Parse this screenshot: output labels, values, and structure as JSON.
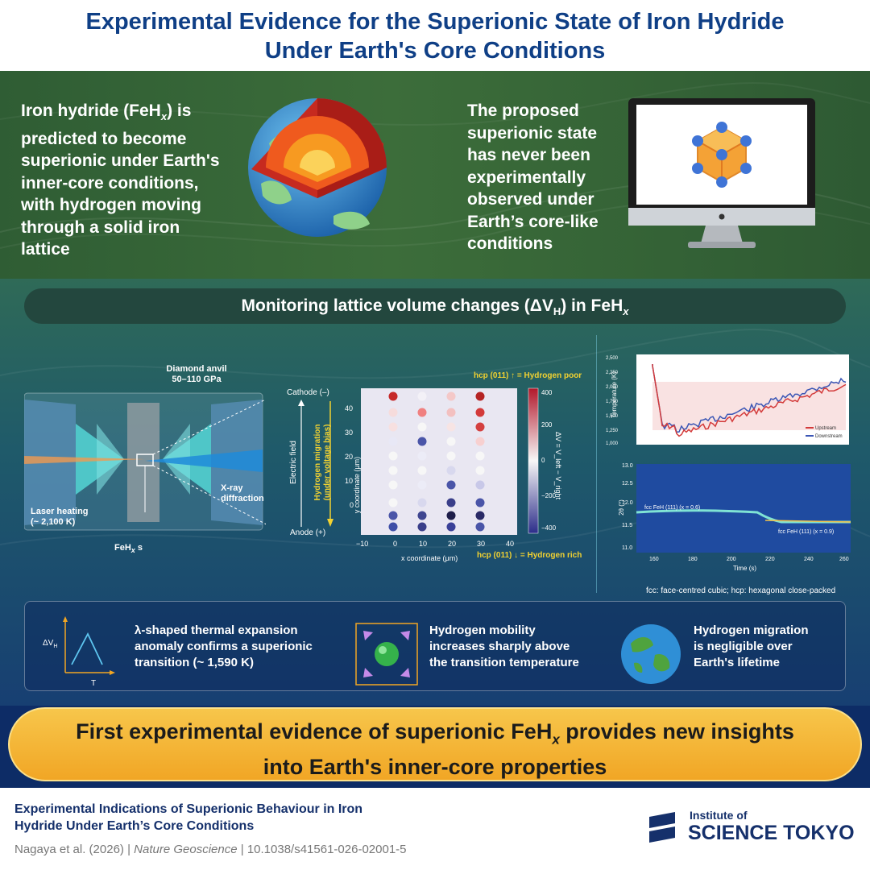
{
  "header": {
    "title_line1": "Experimental Evidence for the Superionic State of Iron Hydride",
    "title_line2": "Under Earth's Core Conditions"
  },
  "intro": {
    "left": {
      "line1_pre": "Iron hydride (FeH",
      "line1_sub": "x",
      "line1_post": ") is",
      "rest": [
        "predicted to become",
        "superionic under Earth's",
        "inner-core conditions,",
        "with hydrogen moving",
        "through a solid iron",
        "lattice"
      ]
    },
    "right": [
      "The proposed",
      "superionic state",
      "has never been",
      "experimentally",
      "observed under",
      "Earth’s core-like",
      "conditions"
    ]
  },
  "section": {
    "title_pre": "Monitoring lattice volume changes (ΔV",
    "title_sub": "H",
    "title_mid": ") in FeH",
    "title_sub2": "x"
  },
  "anvil": {
    "diamond_label": "Diamond anvil",
    "pressure": "50–110 GPa",
    "laser_label": "Laser heating",
    "laser_temp": "(~ 2,100 K)",
    "xray_line1": "X-ray",
    "xray_line2": "diffraction",
    "sample_pre": "FeH",
    "sample_sub": "x",
    "sample_post": " s"
  },
  "dotmap": {
    "cathode": "Cathode (–)",
    "anode": "Anode (+)",
    "field": "Electric field",
    "migration_line1": "Hydrogen migration",
    "migration_line2": "(under voltage bias)",
    "y_axis": "y coordinate (μm)",
    "x_axis": "x coordinate (μm)",
    "top_note": "hcp (011) ↑ = Hydrogen poor",
    "bottom_note": "hcp (011) ↓ = Hydrogen rich",
    "colorbar_label": "ΔV = V_left − V_right",
    "x_ticks": [
      "−10",
      "0",
      "10",
      "20",
      "30",
      "40"
    ],
    "y_ticks": [
      "40",
      "30",
      "20",
      "10",
      "0"
    ],
    "cb_ticks": [
      "400",
      "200",
      "0",
      "−200",
      "−400"
    ]
  },
  "temp_chart": {
    "ylabel": "Temperature (K)",
    "y_ticks": [
      "2,500",
      "2,250",
      "2,000",
      "1,750",
      "1,500",
      "1,250",
      "1,000"
    ],
    "legend": [
      "Upstream",
      "Downstream"
    ]
  },
  "xrd_chart": {
    "ylabel": "2θ (°)",
    "xlabel": "Time (s)",
    "y_ticks": [
      "13.0",
      "12.5",
      "12.0",
      "11.5",
      "11.0"
    ],
    "x_ticks": [
      "160",
      "180",
      "200",
      "220",
      "240",
      "260"
    ],
    "fcc_label": "fcc FeH (111) (x = 0.6)",
    "fcc2_label": "fcc FeH (111) (x = 0.9)"
  },
  "abbrev_note": "fcc: face-centred cubic; hcp: hexagonal close-packed",
  "summary": {
    "item1": [
      "λ-shaped thermal expansion",
      "anomaly confirms a superionic",
      "transition (~ 1,590 K)"
    ],
    "item1_axis_y": "ΔV",
    "item1_axis_y_sub": "H",
    "item1_axis_x": "T",
    "item2": [
      "Hydrogen mobility",
      "increases sharply above",
      "the transition temperature"
    ],
    "item3": [
      "Hydrogen migration",
      "is negligible over",
      "Earth's lifetime"
    ]
  },
  "banner": {
    "line1_pre": "First experimental evidence of superionic FeH",
    "line1_sub": "x",
    "line1_post": " provides new insights",
    "line2": "into Earth's inner-core properties"
  },
  "footer": {
    "paper_title_line1": "Experimental Indications of Superionic Behaviour in Iron",
    "paper_title_line2": "Hydride Under Earth’s Core Conditions",
    "authors": "Nagaya et al. (2026)",
    "sep": "|",
    "journal": "Nature Geoscience",
    "doi": "10.1038/s41561-026-02001-5",
    "logo_small": "Institute of",
    "logo_large": "SCIENCE TOKYO"
  },
  "colors": {
    "title_blue": "#0f3f86",
    "green_band": "#3c6d3a",
    "accent_yellow": "#f2d231",
    "banner_orange": "#f1a625"
  }
}
